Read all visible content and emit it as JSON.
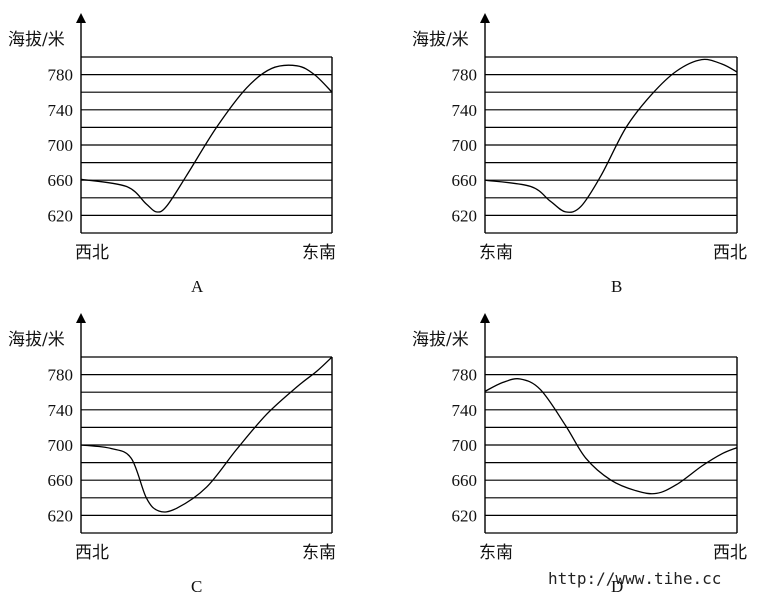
{
  "chart_data": [
    {
      "type": "line",
      "caption": "A",
      "ylabel": "海拔/米",
      "yticks": [
        620,
        660,
        700,
        740,
        780
      ],
      "ylim": [
        600,
        800
      ],
      "grid_step": 20,
      "x_left_label": "西北",
      "x_right_label": "东南",
      "points": [
        [
          0,
          661
        ],
        [
          0.18,
          653
        ],
        [
          0.26,
          633
        ],
        [
          0.3,
          624
        ],
        [
          0.34,
          630
        ],
        [
          0.42,
          665
        ],
        [
          0.54,
          720
        ],
        [
          0.66,
          765
        ],
        [
          0.76,
          787
        ],
        [
          0.86,
          790
        ],
        [
          0.93,
          780
        ],
        [
          1.0,
          760
        ]
      ]
    },
    {
      "type": "line",
      "caption": "B",
      "ylabel": "海拔/米",
      "yticks": [
        620,
        660,
        700,
        740,
        780
      ],
      "ylim": [
        600,
        800
      ],
      "grid_step": 20,
      "x_left_label": "东南",
      "x_right_label": "西北",
      "points": [
        [
          0,
          660
        ],
        [
          0.18,
          653
        ],
        [
          0.26,
          636
        ],
        [
          0.32,
          624
        ],
        [
          0.38,
          630
        ],
        [
          0.46,
          665
        ],
        [
          0.56,
          720
        ],
        [
          0.66,
          757
        ],
        [
          0.76,
          784
        ],
        [
          0.86,
          797
        ],
        [
          0.94,
          792
        ],
        [
          1.0,
          783
        ]
      ]
    },
    {
      "type": "line",
      "caption": "C",
      "ylabel": "海拔/米",
      "yticks": [
        620,
        660,
        700,
        740,
        780
      ],
      "ylim": [
        600,
        800
      ],
      "grid_step": 20,
      "x_left_label": "西北",
      "x_right_label": "东南",
      "points": [
        [
          0,
          700
        ],
        [
          0.12,
          696
        ],
        [
          0.2,
          685
        ],
        [
          0.26,
          640
        ],
        [
          0.31,
          625
        ],
        [
          0.38,
          628
        ],
        [
          0.5,
          652
        ],
        [
          0.62,
          695
        ],
        [
          0.74,
          735
        ],
        [
          0.86,
          766
        ],
        [
          0.94,
          784
        ],
        [
          1.0,
          800
        ]
      ]
    },
    {
      "type": "line",
      "caption": "D",
      "ylabel": "海拔/米",
      "yticks": [
        620,
        660,
        700,
        740,
        780
      ],
      "ylim": [
        600,
        800
      ],
      "grid_step": 20,
      "x_left_label": "东南",
      "x_right_label": "西北",
      "points": [
        [
          0,
          761
        ],
        [
          0.07,
          771
        ],
        [
          0.14,
          775
        ],
        [
          0.22,
          763
        ],
        [
          0.32,
          722
        ],
        [
          0.4,
          685
        ],
        [
          0.5,
          660
        ],
        [
          0.6,
          648
        ],
        [
          0.68,
          645
        ],
        [
          0.76,
          655
        ],
        [
          0.86,
          676
        ],
        [
          0.94,
          690
        ],
        [
          1.0,
          697
        ]
      ]
    }
  ],
  "watermark": "http://www.tihe.cc"
}
